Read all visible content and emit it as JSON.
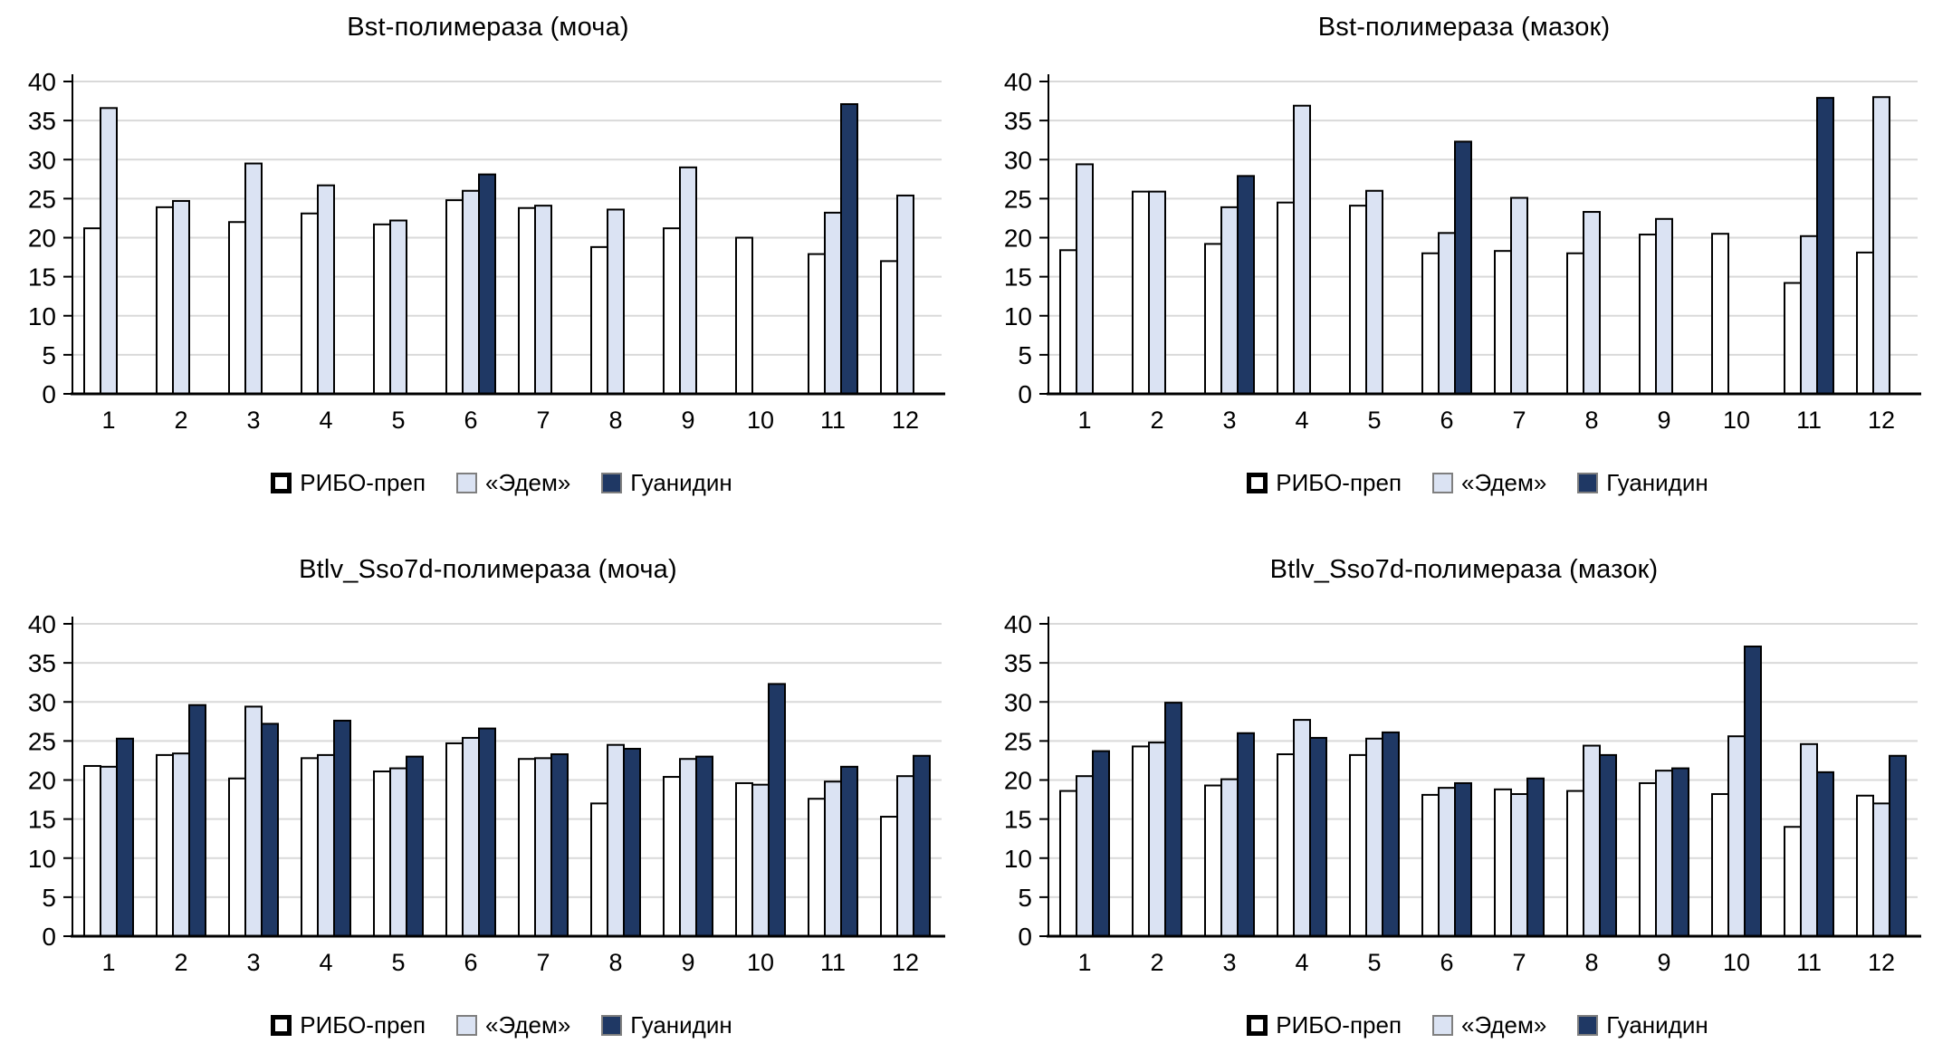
{
  "page": {
    "background": "#ffffff",
    "grid_color": "#d9d9d9",
    "axis_color": "#000000"
  },
  "chart_data": [
    {
      "type": "bar",
      "title": "Bst-полимераза (моча)",
      "categories": [
        "1",
        "2",
        "3",
        "4",
        "5",
        "6",
        "7",
        "8",
        "9",
        "10",
        "11",
        "12"
      ],
      "ylim": [
        0,
        40
      ],
      "ytick_step": 5,
      "grid": "horizontal",
      "legend_position": "bottom",
      "series": [
        {
          "name": "РИБО-преп",
          "fill": "#ffffff",
          "stroke": "#000000",
          "values": [
            21.2,
            23.9,
            22.0,
            23.1,
            21.7,
            24.8,
            23.8,
            18.8,
            21.2,
            20.0,
            17.9,
            17.0
          ]
        },
        {
          "name": "«Эдем»",
          "fill": "#dbe3f3",
          "stroke": "#000000",
          "values": [
            36.6,
            24.7,
            29.5,
            26.7,
            22.2,
            26.0,
            24.1,
            23.6,
            29.0,
            null,
            23.2,
            25.4
          ]
        },
        {
          "name": "Гуанидин",
          "fill": "#1f3864",
          "stroke": "#000000",
          "values": [
            null,
            null,
            null,
            null,
            null,
            28.1,
            null,
            null,
            null,
            null,
            37.1,
            null
          ]
        }
      ]
    },
    {
      "type": "bar",
      "title": "Bst-полимераза (мазок)",
      "categories": [
        "1",
        "2",
        "3",
        "4",
        "5",
        "6",
        "7",
        "8",
        "9",
        "10",
        "11",
        "12"
      ],
      "ylim": [
        0,
        40
      ],
      "ytick_step": 5,
      "grid": "horizontal",
      "legend_position": "bottom",
      "series": [
        {
          "name": "РИБО-преп",
          "fill": "#ffffff",
          "stroke": "#000000",
          "values": [
            18.4,
            25.9,
            19.2,
            24.5,
            24.1,
            18.0,
            18.3,
            18.0,
            20.4,
            20.5,
            14.2,
            18.1
          ]
        },
        {
          "name": "«Эдем»",
          "fill": "#dbe3f3",
          "stroke": "#000000",
          "values": [
            29.4,
            25.9,
            23.9,
            36.9,
            26.0,
            20.6,
            25.1,
            23.3,
            22.4,
            null,
            20.2,
            38.0
          ]
        },
        {
          "name": "Гуанидин",
          "fill": "#1f3864",
          "stroke": "#000000",
          "values": [
            null,
            null,
            27.9,
            null,
            null,
            32.3,
            null,
            null,
            null,
            null,
            37.9,
            null
          ]
        }
      ]
    },
    {
      "type": "bar",
      "title": "Btlv_Sso7d-полимераза (моча)",
      "categories": [
        "1",
        "2",
        "3",
        "4",
        "5",
        "6",
        "7",
        "8",
        "9",
        "10",
        "11",
        "12"
      ],
      "ylim": [
        0,
        40
      ],
      "ytick_step": 5,
      "grid": "horizontal",
      "legend_position": "bottom",
      "series": [
        {
          "name": "РИБО-преп",
          "fill": "#ffffff",
          "stroke": "#000000",
          "values": [
            21.8,
            23.2,
            20.2,
            22.8,
            21.1,
            24.7,
            22.7,
            17.0,
            20.4,
            19.6,
            17.6,
            15.3
          ]
        },
        {
          "name": "«Эдем»",
          "fill": "#dbe3f3",
          "stroke": "#000000",
          "values": [
            21.7,
            23.4,
            29.4,
            23.2,
            21.5,
            25.4,
            22.8,
            24.5,
            22.7,
            19.4,
            19.8,
            20.5
          ]
        },
        {
          "name": "Гуанидин",
          "fill": "#1f3864",
          "stroke": "#000000",
          "values": [
            25.3,
            29.6,
            27.2,
            27.6,
            23.0,
            26.6,
            23.3,
            24.0,
            23.0,
            32.3,
            21.7,
            23.1
          ]
        }
      ]
    },
    {
      "type": "bar",
      "title": "Btlv_Sso7d-полимераза (мазок)",
      "categories": [
        "1",
        "2",
        "3",
        "4",
        "5",
        "6",
        "7",
        "8",
        "9",
        "10",
        "11",
        "12"
      ],
      "ylim": [
        0,
        40
      ],
      "ytick_step": 5,
      "grid": "horizontal",
      "legend_position": "bottom",
      "series": [
        {
          "name": "РИБО-преп",
          "fill": "#ffffff",
          "stroke": "#000000",
          "values": [
            18.6,
            24.3,
            19.3,
            23.3,
            23.2,
            18.1,
            18.8,
            18.6,
            19.6,
            18.2,
            14.0,
            18.0
          ]
        },
        {
          "name": "«Эдем»",
          "fill": "#dbe3f3",
          "stroke": "#000000",
          "values": [
            20.5,
            24.8,
            20.1,
            27.7,
            25.3,
            19.0,
            18.2,
            24.4,
            21.2,
            25.6,
            24.6,
            17.0
          ]
        },
        {
          "name": "Гуанидин",
          "fill": "#1f3864",
          "stroke": "#000000",
          "values": [
            23.7,
            29.9,
            26.0,
            25.4,
            26.1,
            19.6,
            20.2,
            23.2,
            21.5,
            37.1,
            21.0,
            23.1
          ]
        }
      ]
    }
  ]
}
